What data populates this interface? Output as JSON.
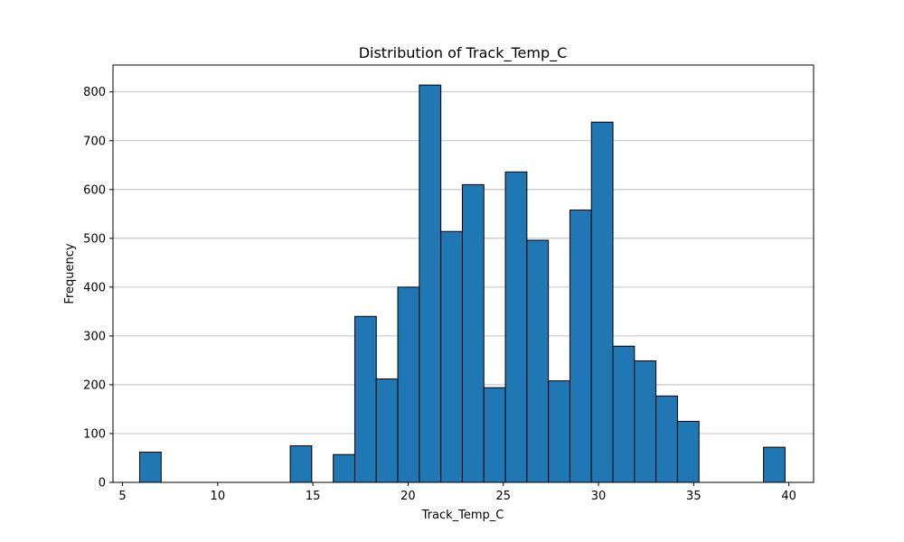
{
  "chart_data": {
    "type": "bar",
    "title": "Distribution of Track_Temp_C",
    "xlabel": "Track_Temp_C",
    "ylabel": "Frequency",
    "xlim": [
      4.5,
      41.3
    ],
    "ylim": [
      0,
      855
    ],
    "xticks": [
      5,
      10,
      15,
      20,
      25,
      30,
      35,
      40
    ],
    "yticks": [
      0,
      100,
      200,
      300,
      400,
      500,
      600,
      700,
      800
    ],
    "grid": "y",
    "bar_color": "#1f77b4",
    "edge_color": "#000000",
    "bins": [
      {
        "x0": 5.9,
        "x1": 7.03,
        "value": 62
      },
      {
        "x0": 7.03,
        "x1": 8.16,
        "value": 0
      },
      {
        "x0": 8.16,
        "x1": 9.29,
        "value": 0
      },
      {
        "x0": 9.29,
        "x1": 10.42,
        "value": 0
      },
      {
        "x0": 10.42,
        "x1": 11.55,
        "value": 0
      },
      {
        "x0": 11.55,
        "x1": 12.68,
        "value": 0
      },
      {
        "x0": 12.68,
        "x1": 13.81,
        "value": 0
      },
      {
        "x0": 13.81,
        "x1": 14.94,
        "value": 75
      },
      {
        "x0": 14.94,
        "x1": 16.07,
        "value": 0
      },
      {
        "x0": 16.07,
        "x1": 17.2,
        "value": 57
      },
      {
        "x0": 17.2,
        "x1": 18.33,
        "value": 340
      },
      {
        "x0": 18.33,
        "x1": 19.46,
        "value": 212
      },
      {
        "x0": 19.46,
        "x1": 20.59,
        "value": 400
      },
      {
        "x0": 20.59,
        "x1": 21.72,
        "value": 814
      },
      {
        "x0": 21.72,
        "x1": 22.85,
        "value": 514
      },
      {
        "x0": 22.85,
        "x1": 23.98,
        "value": 610
      },
      {
        "x0": 23.98,
        "x1": 25.11,
        "value": 194
      },
      {
        "x0": 25.11,
        "x1": 26.24,
        "value": 636
      },
      {
        "x0": 26.24,
        "x1": 27.37,
        "value": 496
      },
      {
        "x0": 27.37,
        "x1": 28.5,
        "value": 208
      },
      {
        "x0": 28.5,
        "x1": 29.63,
        "value": 558
      },
      {
        "x0": 29.63,
        "x1": 30.76,
        "value": 738
      },
      {
        "x0": 30.76,
        "x1": 31.89,
        "value": 279
      },
      {
        "x0": 31.89,
        "x1": 33.02,
        "value": 249
      },
      {
        "x0": 33.02,
        "x1": 34.15,
        "value": 177
      },
      {
        "x0": 34.15,
        "x1": 35.28,
        "value": 125
      },
      {
        "x0": 35.28,
        "x1": 36.41,
        "value": 0
      },
      {
        "x0": 36.41,
        "x1": 37.54,
        "value": 0
      },
      {
        "x0": 37.54,
        "x1": 38.67,
        "value": 0
      },
      {
        "x0": 38.67,
        "x1": 39.8,
        "value": 72
      }
    ]
  }
}
